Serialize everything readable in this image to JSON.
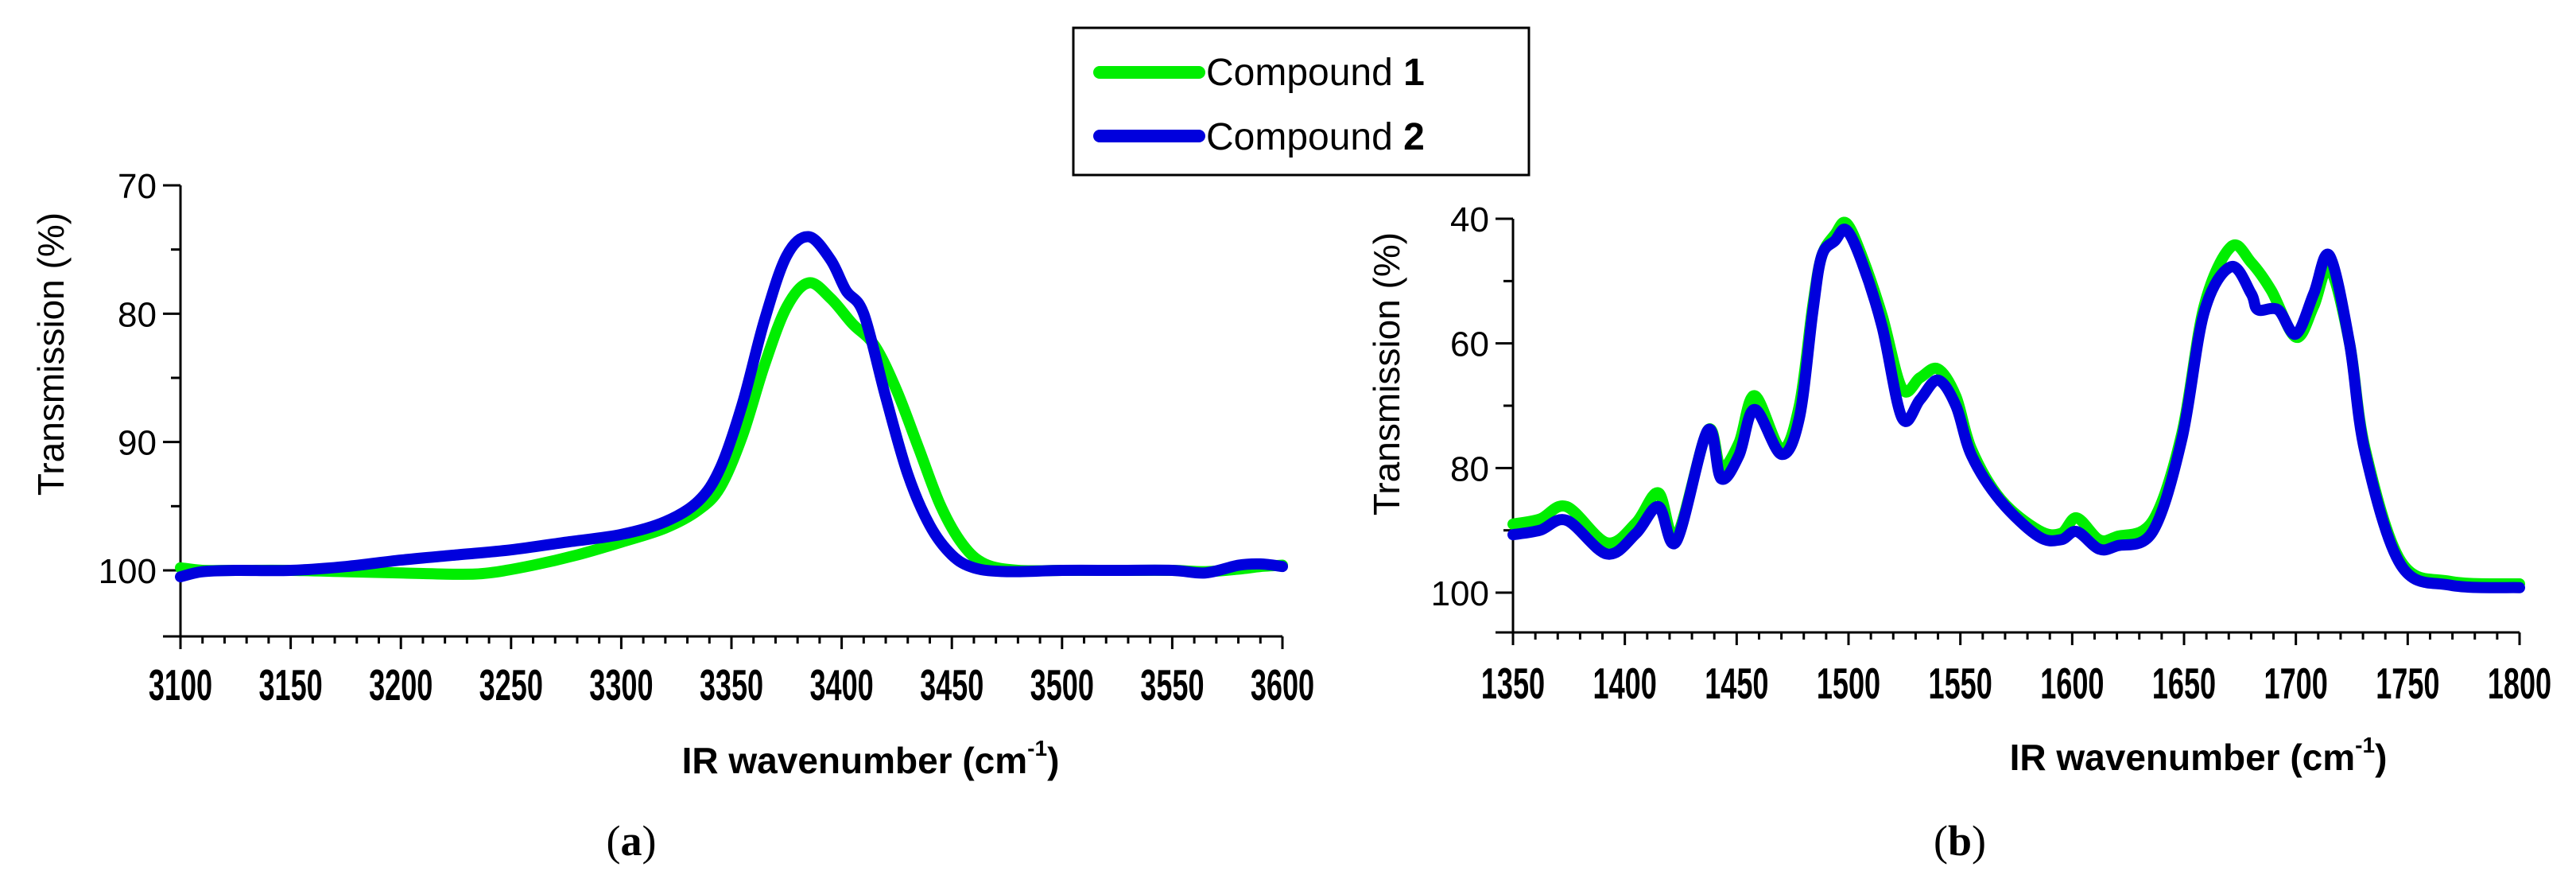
{
  "legend": {
    "items": [
      {
        "label": "Compound ",
        "bold": "1",
        "color": "#00ee00"
      },
      {
        "label": "Compound ",
        "bold": "2",
        "color": "#0000dd"
      }
    ]
  },
  "panels": [
    {
      "label_open": "(",
      "label": "a",
      "label_close": ")"
    },
    {
      "label_open": "(",
      "label": "b",
      "label_close": ")"
    }
  ],
  "chart_data": [
    {
      "type": "line",
      "panel": "a",
      "title": "",
      "xlabel": "IR  wavenumber (cm",
      "xlabel_sup": "-1",
      "xlabel_close": ")",
      "ylabel": "Transmission (%)",
      "xlim": [
        3100,
        3600
      ],
      "ylim": [
        70,
        105
      ],
      "y_inverted": true,
      "xticks": [
        3100,
        3150,
        3200,
        3250,
        3300,
        3350,
        3400,
        3450,
        3500,
        3550,
        3600
      ],
      "yticks": [
        70,
        80,
        90,
        100
      ],
      "grid": false,
      "legend_position": "top-center (shared)",
      "series": [
        {
          "name": "Compound 1",
          "color": "#00ee00",
          "x": [
            3100,
            3110,
            3125,
            3150,
            3175,
            3200,
            3225,
            3240,
            3260,
            3280,
            3300,
            3320,
            3335,
            3345,
            3355,
            3365,
            3375,
            3385,
            3395,
            3405,
            3415,
            3425,
            3435,
            3445,
            3455,
            3465,
            3480,
            3500,
            3525,
            3550,
            3565,
            3580,
            3590,
            3600
          ],
          "y": [
            99.8,
            100,
            100,
            100,
            100.1,
            100.2,
            100.3,
            100.2,
            99.6,
            98.8,
            97.8,
            96.7,
            95.3,
            93.5,
            89.5,
            84.0,
            79.5,
            77.6,
            78.8,
            80.8,
            82.5,
            86.0,
            90.5,
            95.0,
            98.0,
            99.5,
            100,
            100,
            100,
            100,
            100.1,
            99.9,
            99.7,
            99.6
          ]
        },
        {
          "name": "Compound 2",
          "color": "#0000dd",
          "x": [
            3100,
            3110,
            3125,
            3150,
            3175,
            3200,
            3225,
            3250,
            3275,
            3300,
            3320,
            3335,
            3345,
            3355,
            3365,
            3375,
            3385,
            3395,
            3402,
            3410,
            3420,
            3430,
            3440,
            3450,
            3460,
            3475,
            3500,
            3525,
            3550,
            3565,
            3580,
            3590,
            3600
          ],
          "y": [
            100.5,
            100.1,
            100,
            100,
            99.7,
            99.2,
            98.8,
            98.4,
            97.8,
            97.2,
            96.2,
            94.6,
            92.0,
            87.0,
            80.5,
            75.5,
            74.0,
            75.8,
            78.2,
            80.0,
            86.5,
            92.5,
            96.5,
            98.8,
            99.8,
            100.1,
            100,
            100,
            100,
            100.2,
            99.6,
            99.5,
            99.7
          ]
        }
      ]
    },
    {
      "type": "line",
      "panel": "b",
      "title": "",
      "xlabel": "IR  wavenumber (cm",
      "xlabel_sup": "-1",
      "xlabel_close": ")",
      "ylabel": "Transmission (%)",
      "xlim": [
        1350,
        1800
      ],
      "ylim": [
        40,
        105
      ],
      "y_inverted": true,
      "xticks": [
        1350,
        1400,
        1450,
        1500,
        1550,
        1600,
        1650,
        1700,
        1750,
        1800
      ],
      "yticks": [
        40,
        60,
        80,
        100
      ],
      "grid": false,
      "legend_position": "top-center (shared)",
      "series": [
        {
          "name": "Compound 1",
          "color": "#00ee00",
          "x": [
            1350,
            1362,
            1374,
            1392,
            1405,
            1415,
            1423,
            1437,
            1443,
            1451,
            1458,
            1470,
            1478,
            1484,
            1488,
            1494,
            1499,
            1506,
            1515,
            1524,
            1532,
            1540,
            1548,
            1555,
            1568,
            1585,
            1595,
            1602,
            1612,
            1620,
            1636,
            1649,
            1659,
            1671,
            1680,
            1689,
            1700,
            1708,
            1715,
            1724,
            1731,
            1747,
            1769,
            1800
          ],
          "y": [
            89.0,
            88.2,
            86.2,
            92.0,
            88.8,
            84.0,
            91.0,
            74.0,
            80.0,
            76.0,
            68.4,
            77.0,
            70.0,
            54.0,
            46.0,
            42.5,
            40.7,
            46.0,
            55.5,
            67.3,
            65.5,
            64.1,
            68.5,
            77.0,
            85.0,
            90.0,
            90.5,
            88.0,
            91.5,
            91.0,
            88.5,
            74.5,
            54.0,
            44.5,
            47.0,
            51.5,
            59.0,
            54.0,
            48.0,
            60.0,
            77.0,
            95.0,
            98.2,
            98.6
          ]
        },
        {
          "name": "Compound 2",
          "color": "#0000dd",
          "x": [
            1350,
            1362,
            1374,
            1392,
            1405,
            1415,
            1423,
            1437,
            1443,
            1451,
            1458,
            1470,
            1478,
            1484,
            1488,
            1494,
            1499,
            1506,
            1515,
            1524,
            1532,
            1540,
            1548,
            1555,
            1568,
            1585,
            1595,
            1602,
            1612,
            1620,
            1636,
            1649,
            1659,
            1671,
            1680,
            1683,
            1692,
            1700,
            1708,
            1715,
            1724,
            1731,
            1747,
            1769,
            1800
          ],
          "y": [
            90.7,
            90.0,
            88.4,
            93.8,
            90.5,
            86.2,
            91.8,
            74.0,
            81.7,
            78.0,
            70.6,
            77.8,
            72.0,
            55.0,
            46.0,
            43.5,
            41.8,
            47.0,
            57.3,
            72.0,
            69.0,
            65.9,
            70.0,
            78.0,
            85.3,
            91.0,
            91.5,
            90.2,
            93.0,
            92.5,
            90.2,
            75.4,
            55.0,
            47.7,
            52.0,
            54.6,
            54.6,
            58.5,
            52.0,
            45.9,
            60.0,
            77.6,
            95.6,
            98.8,
            99.2
          ]
        }
      ]
    }
  ]
}
